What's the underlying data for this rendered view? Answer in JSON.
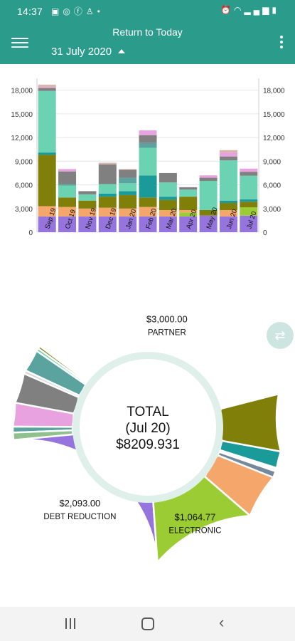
{
  "status_bar": {
    "time": "14:37",
    "notification_icons": [
      "gallery-icon",
      "messenger-icon",
      "facebook-icon",
      "snapchat-icon",
      "dot-icon"
    ],
    "system_icons": [
      "alarm-icon",
      "wifi-icon",
      "signal-icon",
      "battery-icon"
    ]
  },
  "app_bar": {
    "return_label": "Return to Today",
    "date_label": "31 July 2020",
    "color": "#2b9c8b"
  },
  "chart_data": [
    {
      "type": "bar",
      "stacked": true,
      "categories": [
        "Sep 19",
        "Oct 19",
        "Nov 19",
        "Dec 19",
        "Jan 20",
        "Feb 20",
        "Mar 20",
        "Apr 20",
        "May 20",
        "Jun 20",
        "Jul 20"
      ],
      "yticks": [
        "0",
        "3,000",
        "6,000",
        "9,000",
        "12,000",
        "15,000",
        "18,000"
      ],
      "ylim": [
        0,
        19500
      ],
      "grid": true,
      "series": [
        {
          "color": "#9575dd",
          "values": [
            2000,
            2000,
            2000,
            2000,
            2000,
            2000,
            2000,
            2000,
            2100,
            2000,
            2093
          ]
        },
        {
          "color": "#9ccc34",
          "values": [
            0,
            0,
            0,
            0,
            0,
            0,
            0,
            500,
            0,
            0,
            1065
          ]
        },
        {
          "color": "#f5a66b",
          "values": [
            1300,
            1200,
            1000,
            1100,
            1000,
            1200,
            800,
            300,
            0,
            800,
            0
          ]
        },
        {
          "color": "#7f7f0a",
          "values": [
            6500,
            1200,
            1000,
            1400,
            1700,
            1200,
            1300,
            1700,
            700,
            900,
            700
          ]
        },
        {
          "color": "#1a9a98",
          "values": [
            300,
            0,
            0,
            400,
            500,
            2800,
            400,
            0,
            0,
            300,
            300
          ]
        },
        {
          "color": "#6cd3b2",
          "values": [
            7800,
            1500,
            800,
            1200,
            1000,
            3500,
            1800,
            900,
            3700,
            5100,
            3000
          ]
        },
        {
          "color": "#5aa39e",
          "values": [
            0,
            200,
            0,
            0,
            700,
            600,
            0,
            0,
            0,
            0,
            0
          ]
        },
        {
          "color": "#808080",
          "values": [
            400,
            1600,
            400,
            2500,
            1000,
            1000,
            1200,
            300,
            400,
            500,
            500
          ]
        },
        {
          "color": "#e8a2e0",
          "values": [
            100,
            300,
            0,
            0,
            0,
            600,
            0,
            0,
            300,
            500,
            400
          ]
        },
        {
          "color": "#d9b5ae",
          "values": [
            300,
            0,
            0,
            200,
            100,
            0,
            0,
            0,
            0,
            300,
            0
          ]
        }
      ]
    },
    {
      "type": "pie",
      "donut": true,
      "center_title": "TOTAL",
      "center_period": "(Jul 20)",
      "center_value": "$8209.931",
      "start_angle_deg": 16,
      "slices": [
        {
          "value": 3000.0,
          "color": "#6cd3b2",
          "amount": "$3,000.00",
          "label": "PARTNER"
        },
        {
          "value": 28,
          "color": "#7f7f0a",
          "amount": "",
          "label": ""
        },
        {
          "value": 30,
          "color": "#6cd3b2",
          "amount": "",
          "label": ""
        },
        {
          "value": 225,
          "color": "#5aa39e",
          "amount": "",
          "label": ""
        },
        {
          "value": 35,
          "color": "#d9d9d9",
          "amount": "",
          "label": ""
        },
        {
          "value": 305,
          "color": "#808080",
          "amount": "",
          "label": ""
        },
        {
          "value": 240,
          "color": "#e8a2e0",
          "amount": "",
          "label": ""
        },
        {
          "value": 60,
          "color": "#5aa39e",
          "amount": "",
          "label": ""
        },
        {
          "value": 75,
          "color": "#8fc18f",
          "amount": "",
          "label": ""
        },
        {
          "value": 2093.0,
          "color": "#9575dd",
          "amount": "$2,093.00",
          "label": "DEBT REDUCTION"
        },
        {
          "value": 1064.77,
          "color": "#9ccc34",
          "amount": "$1,064.77",
          "label": "ELECTRONIC"
        },
        {
          "value": 450,
          "color": "#f5a66b",
          "amount": "",
          "label": ""
        },
        {
          "value": 65,
          "color": "#75899a",
          "amount": "",
          "label": ""
        },
        {
          "value": 35,
          "color": "#ffffff",
          "amount": "",
          "label": ""
        },
        {
          "value": 170,
          "color": "#1a9a98",
          "amount": "",
          "label": ""
        },
        {
          "value": 580,
          "color": "#7f7f0a",
          "amount": "",
          "label": ""
        },
        {
          "value": 40,
          "color": "#ffffff",
          "amount": "",
          "label": ""
        }
      ]
    }
  ],
  "side_button_icon": "swap-arrows-icon",
  "nav_bar": {
    "buttons": [
      "recents-icon",
      "home-icon",
      "back-icon"
    ]
  }
}
